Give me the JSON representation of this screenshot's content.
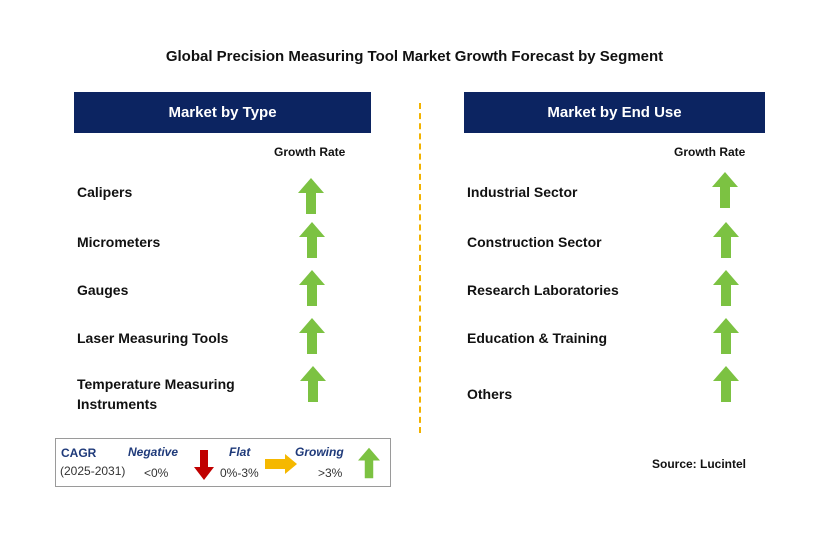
{
  "title": "Global Precision Measuring Tool Market Growth Forecast by Segment",
  "left_panel": {
    "header": "Market by Type",
    "growth_rate_label": "Growth Rate",
    "items": [
      {
        "label": "Calipers",
        "trend": "growing"
      },
      {
        "label": "Micrometers",
        "trend": "growing"
      },
      {
        "label": "Gauges",
        "trend": "growing"
      },
      {
        "label": "Laser Measuring Tools",
        "trend": "growing"
      },
      {
        "label_line1": "Temperature Measuring",
        "label_line2": "Instruments",
        "trend": "growing"
      }
    ]
  },
  "right_panel": {
    "header": "Market by End Use",
    "growth_rate_label": "Growth Rate",
    "items": [
      {
        "label": "Industrial Sector",
        "trend": "growing"
      },
      {
        "label": "Construction Sector",
        "trend": "growing"
      },
      {
        "label": "Research Laboratories",
        "trend": "growing"
      },
      {
        "label": "Education & Training",
        "trend": "growing"
      },
      {
        "label": "Others",
        "trend": "growing"
      }
    ]
  },
  "legend": {
    "cagr": "CAGR",
    "period": "(2025-2031)",
    "negative": {
      "label": "Negative",
      "value": "<0%"
    },
    "flat": {
      "label": "Flat",
      "value": "0%-3%"
    },
    "growing": {
      "label": "Growing",
      "value": ">3%"
    }
  },
  "source": "Source: Lucintel",
  "colors": {
    "header_bg": "#0c2461",
    "up_arrow": "#7cc242",
    "down_arrow": "#c00000",
    "flat_arrow": "#f5b800",
    "divider": "#f2b200"
  },
  "icons": {
    "growing": "green-up-arrow-icon",
    "negative": "red-down-arrow-icon",
    "flat": "yellow-right-arrow-icon"
  }
}
